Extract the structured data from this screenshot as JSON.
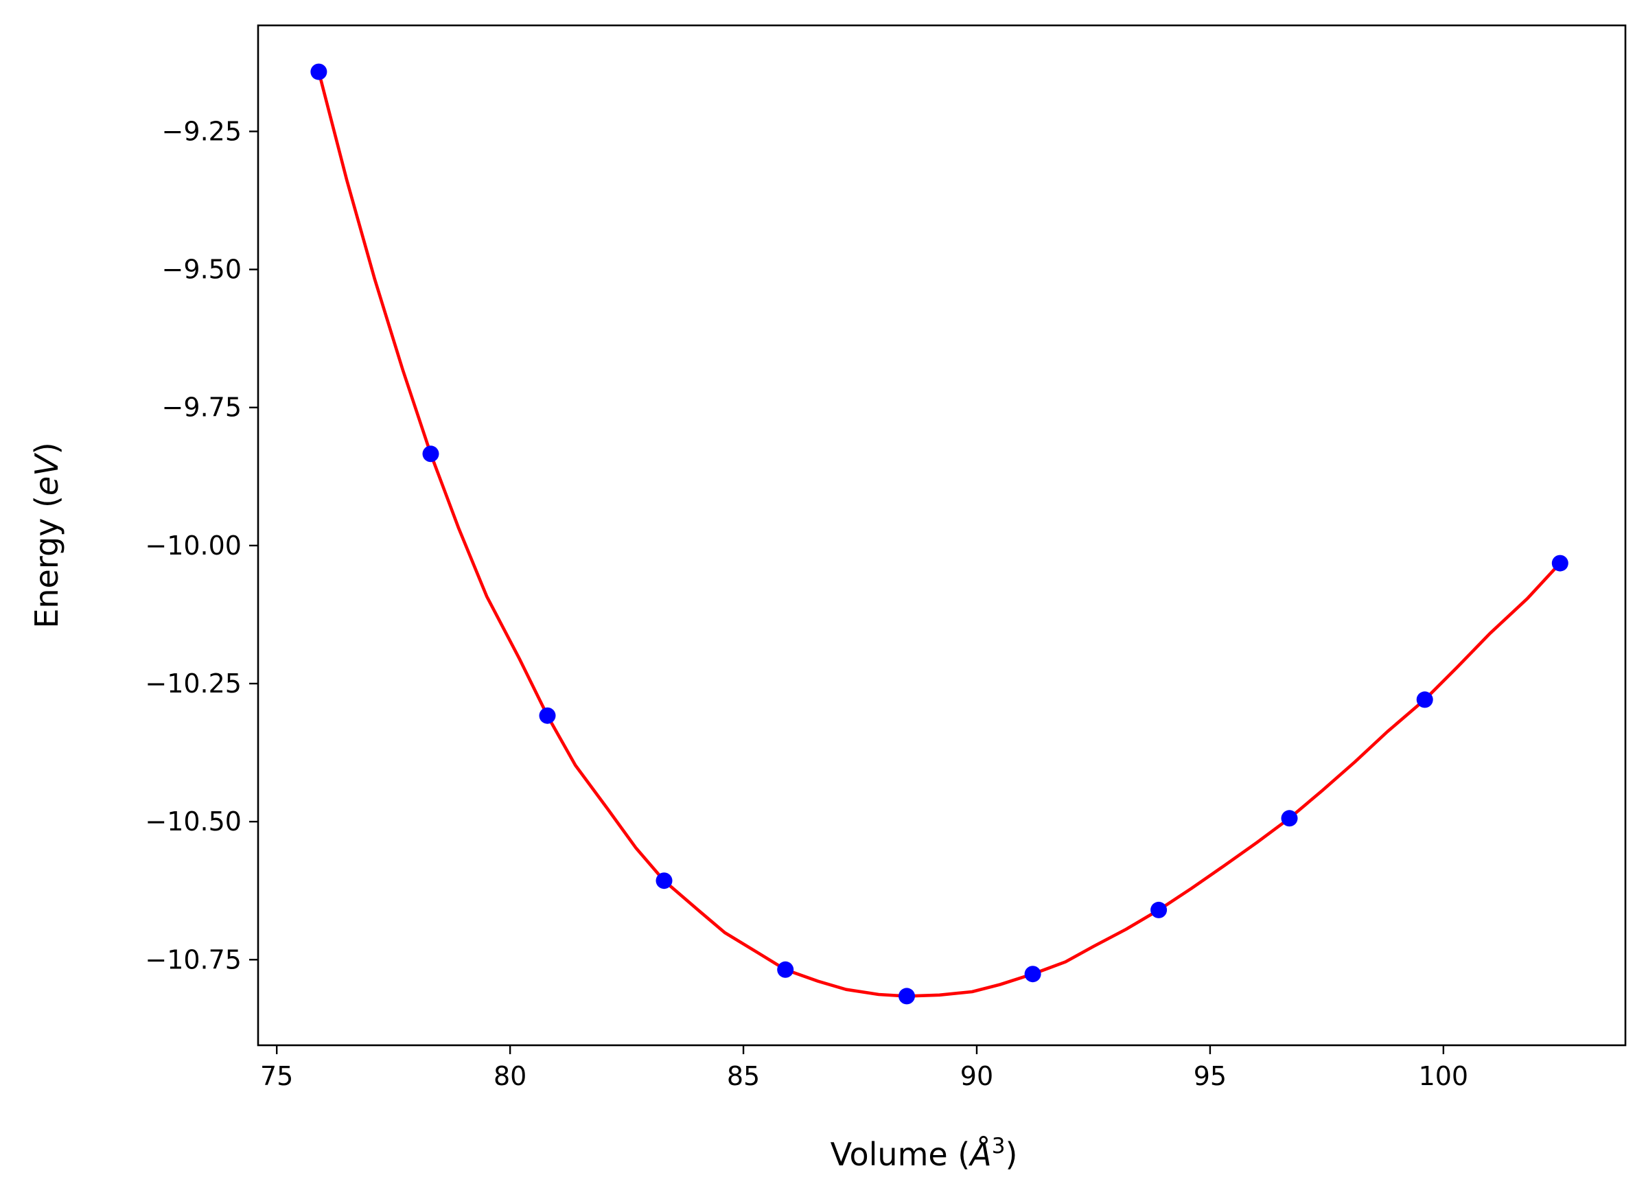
{
  "chart_data": {
    "type": "scatter",
    "title": "",
    "xlabel": "Volume ($\\AA^3$)",
    "xlabel_parts": {
      "main": "Volume (",
      "sym": "Å",
      "sup": "3",
      "end": ")"
    },
    "ylabel": "Energy ($eV$)",
    "ylabel_parts": {
      "main": "Energy (",
      "unit": "eV",
      "end": ")"
    },
    "xlim": [
      74.6,
      103.9
    ],
    "ylim": [
      -10.905,
      -9.058
    ],
    "xticks": [
      75,
      80,
      85,
      90,
      95,
      100
    ],
    "xtick_labels": [
      "75",
      "80",
      "85",
      "90",
      "95",
      "100"
    ],
    "yticks": [
      -9.25,
      -9.5,
      -9.75,
      -10.0,
      -10.25,
      -10.5,
      -10.75
    ],
    "ytick_labels": [
      "−9.25",
      "−9.50",
      "−9.75",
      "−10.00",
      "−10.25",
      "−10.50",
      "−10.75"
    ],
    "grid": false,
    "series": [
      {
        "type": "scatter",
        "color": "#0000ff",
        "x": [
          75.9,
          78.3,
          80.8,
          83.3,
          85.9,
          88.5,
          91.2,
          93.9,
          96.7,
          99.6,
          102.5
        ],
        "y": [
          -9.142,
          -9.834,
          -10.308,
          -10.607,
          -10.768,
          -10.816,
          -10.776,
          -10.66,
          -10.494,
          -10.279,
          -10.032
        ]
      },
      {
        "type": "line",
        "color": "#ff0000",
        "x": [
          75.9,
          76.5,
          77.1,
          77.7,
          78.3,
          78.9,
          79.5,
          80.2,
          80.8,
          81.4,
          82.1,
          82.7,
          83.3,
          84.0,
          84.6,
          85.3,
          85.9,
          86.6,
          87.2,
          87.9,
          88.5,
          89.2,
          89.9,
          90.5,
          91.2,
          91.9,
          92.5,
          93.2,
          93.9,
          94.6,
          95.3,
          96.0,
          96.7,
          97.4,
          98.1,
          98.8,
          99.6,
          100.3,
          101.0,
          101.8,
          102.5
        ],
        "y": [
          -9.142,
          -9.338,
          -9.518,
          -9.682,
          -9.834,
          -9.969,
          -10.092,
          -10.205,
          -10.308,
          -10.398,
          -10.478,
          -10.548,
          -10.607,
          -10.658,
          -10.701,
          -10.737,
          -10.768,
          -10.789,
          -10.804,
          -10.813,
          -10.816,
          -10.814,
          -10.808,
          -10.795,
          -10.776,
          -10.754,
          -10.726,
          -10.695,
          -10.66,
          -10.621,
          -10.58,
          -10.538,
          -10.494,
          -10.444,
          -10.392,
          -10.337,
          -10.279,
          -10.22,
          -10.159,
          -10.096,
          -10.032
        ]
      }
    ]
  }
}
